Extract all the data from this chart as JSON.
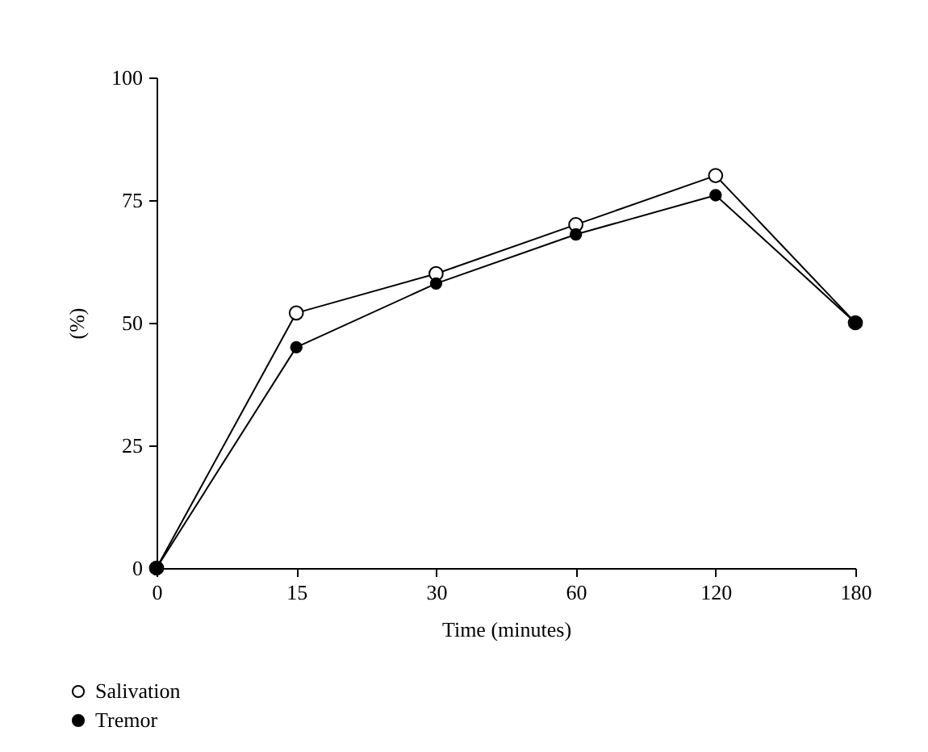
{
  "chart_data": {
    "type": "line",
    "xlabel": "Time (minutes)",
    "ylabel": "(%)",
    "categories": [
      "0",
      "15",
      "30",
      "60",
      "120",
      "180"
    ],
    "series": [
      {
        "name": "Salivation",
        "color": "#000000",
        "values": [
          0,
          52,
          60,
          70,
          80,
          50
        ]
      },
      {
        "name": "Tremor",
        "color": "#000000",
        "values": [
          0,
          45,
          58,
          68,
          76,
          50
        ]
      }
    ],
    "ylim": [
      0,
      100
    ],
    "yticks": [
      0,
      25,
      50,
      75,
      100
    ],
    "grid": false,
    "legend": "bottom left",
    "marker": "circle",
    "line_style": "solid"
  }
}
